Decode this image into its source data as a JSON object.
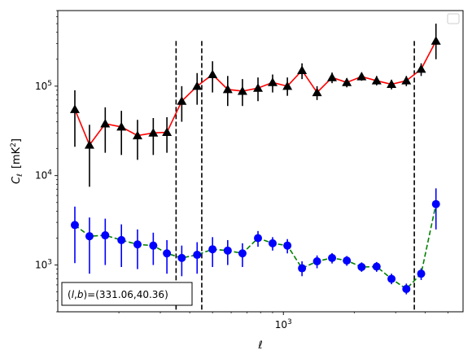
{
  "chart_data": {
    "type": "line",
    "xlabel": "ℓ",
    "ylabel_main": "C",
    "ylabel_sub": "ℓ",
    "ylabel_unit_open": "[mK",
    "ylabel_unit_sup": "2",
    "ylabel_unit_close": "]",
    "x_scale": "log",
    "y_scale": "log",
    "xlim": [
      110,
      5800
    ],
    "ylim": [
      300,
      700000
    ],
    "x_ticks": [
      {
        "value": 1000,
        "base": "10",
        "exp": "3"
      }
    ],
    "y_ticks": [
      {
        "value": 1000,
        "base": "10",
        "exp": "3"
      },
      {
        "value": 10000,
        "base": "10",
        "exp": "4"
      },
      {
        "value": 100000,
        "base": "10",
        "exp": "5"
      }
    ],
    "vlines": [
      {
        "x": 350,
        "y_top": 320000
      },
      {
        "x": 450,
        "y_top": 320000
      },
      {
        "x": 3600,
        "y_top": 320000
      }
    ],
    "annotation": {
      "text": "(l,b)=(331.06,40.36)",
      "italic_prefix": "l",
      "italic_mid": "b",
      "open": "(",
      "comma": ",",
      "close": ")",
      "rest": "=(331.06,40.36)",
      "position": "bottom-left"
    },
    "legend": {
      "position": "top-right",
      "entries": []
    },
    "series": [
      {
        "color": "#ff0000",
        "marker": "triangle",
        "marker_color": "#000000",
        "line_style": "solid",
        "points": [
          {
            "x": 130,
            "y": 55000,
            "lo": 21000,
            "hi": 90000
          },
          {
            "x": 150,
            "y": 22000,
            "lo": 7500,
            "hi": 37000
          },
          {
            "x": 175,
            "y": 38000,
            "lo": 18000,
            "hi": 58000
          },
          {
            "x": 205,
            "y": 35000,
            "lo": 17000,
            "hi": 53000
          },
          {
            "x": 240,
            "y": 28000,
            "lo": 15000,
            "hi": 42000
          },
          {
            "x": 280,
            "y": 30000,
            "lo": 17000,
            "hi": 44000
          },
          {
            "x": 320,
            "y": 30500,
            "lo": 18000,
            "hi": 45000
          },
          {
            "x": 370,
            "y": 68000,
            "lo": 40000,
            "hi": 100000
          },
          {
            "x": 430,
            "y": 100000,
            "lo": 62000,
            "hi": 140000
          },
          {
            "x": 500,
            "y": 135000,
            "lo": 85000,
            "hi": 190000
          },
          {
            "x": 580,
            "y": 92000,
            "lo": 60000,
            "hi": 130000
          },
          {
            "x": 670,
            "y": 88000,
            "lo": 60000,
            "hi": 120000
          },
          {
            "x": 780,
            "y": 95000,
            "lo": 68000,
            "hi": 125000
          },
          {
            "x": 900,
            "y": 110000,
            "lo": 85000,
            "hi": 135000
          },
          {
            "x": 1040,
            "y": 100000,
            "lo": 78000,
            "hi": 125000
          },
          {
            "x": 1200,
            "y": 150000,
            "lo": 120000,
            "hi": 180000
          },
          {
            "x": 1390,
            "y": 85000,
            "lo": 70000,
            "hi": 100000
          },
          {
            "x": 1610,
            "y": 125000,
            "lo": 108000,
            "hi": 142000
          },
          {
            "x": 1860,
            "y": 110000,
            "lo": 97000,
            "hi": 123000
          },
          {
            "x": 2150,
            "y": 128000,
            "lo": 115000,
            "hi": 142000
          },
          {
            "x": 2490,
            "y": 115000,
            "lo": 102000,
            "hi": 130000
          },
          {
            "x": 2880,
            "y": 105000,
            "lo": 92000,
            "hi": 118000
          },
          {
            "x": 3330,
            "y": 115000,
            "lo": 100000,
            "hi": 130000
          },
          {
            "x": 3850,
            "y": 155000,
            "lo": 130000,
            "hi": 180000
          },
          {
            "x": 4450,
            "y": 320000,
            "lo": 200000,
            "hi": 500000
          }
        ]
      },
      {
        "color": "#008000",
        "marker": "circle",
        "marker_color": "#0000ff",
        "line_style": "dashed",
        "points": [
          {
            "x": 130,
            "y": 2800,
            "lo": 1050,
            "hi": 4500
          },
          {
            "x": 150,
            "y": 2100,
            "lo": 800,
            "hi": 3400
          },
          {
            "x": 175,
            "y": 2150,
            "lo": 1000,
            "hi": 3300
          },
          {
            "x": 205,
            "y": 1900,
            "lo": 950,
            "hi": 2850
          },
          {
            "x": 240,
            "y": 1700,
            "lo": 900,
            "hi": 2500
          },
          {
            "x": 280,
            "y": 1650,
            "lo": 1000,
            "hi": 2300
          },
          {
            "x": 320,
            "y": 1350,
            "lo": 800,
            "hi": 1900
          },
          {
            "x": 370,
            "y": 1200,
            "lo": 750,
            "hi": 1650
          },
          {
            "x": 430,
            "y": 1300,
            "lo": 800,
            "hi": 1800
          },
          {
            "x": 500,
            "y": 1500,
            "lo": 950,
            "hi": 2050
          },
          {
            "x": 580,
            "y": 1450,
            "lo": 1000,
            "hi": 1900
          },
          {
            "x": 670,
            "y": 1350,
            "lo": 950,
            "hi": 1750
          },
          {
            "x": 780,
            "y": 2000,
            "lo": 1600,
            "hi": 2400
          },
          {
            "x": 900,
            "y": 1750,
            "lo": 1450,
            "hi": 2050
          },
          {
            "x": 1040,
            "y": 1650,
            "lo": 1350,
            "hi": 1950
          },
          {
            "x": 1200,
            "y": 920,
            "lo": 750,
            "hi": 1100
          },
          {
            "x": 1390,
            "y": 1100,
            "lo": 920,
            "hi": 1280
          },
          {
            "x": 1610,
            "y": 1200,
            "lo": 1040,
            "hi": 1360
          },
          {
            "x": 1860,
            "y": 1120,
            "lo": 980,
            "hi": 1260
          },
          {
            "x": 2150,
            "y": 950,
            "lo": 840,
            "hi": 1070
          },
          {
            "x": 2490,
            "y": 960,
            "lo": 840,
            "hi": 1080
          },
          {
            "x": 2880,
            "y": 700,
            "lo": 610,
            "hi": 800
          },
          {
            "x": 3330,
            "y": 540,
            "lo": 470,
            "hi": 620
          },
          {
            "x": 3850,
            "y": 800,
            "lo": 680,
            "hi": 920
          },
          {
            "x": 4450,
            "y": 4800,
            "lo": 2500,
            "hi": 7200
          }
        ]
      }
    ]
  }
}
